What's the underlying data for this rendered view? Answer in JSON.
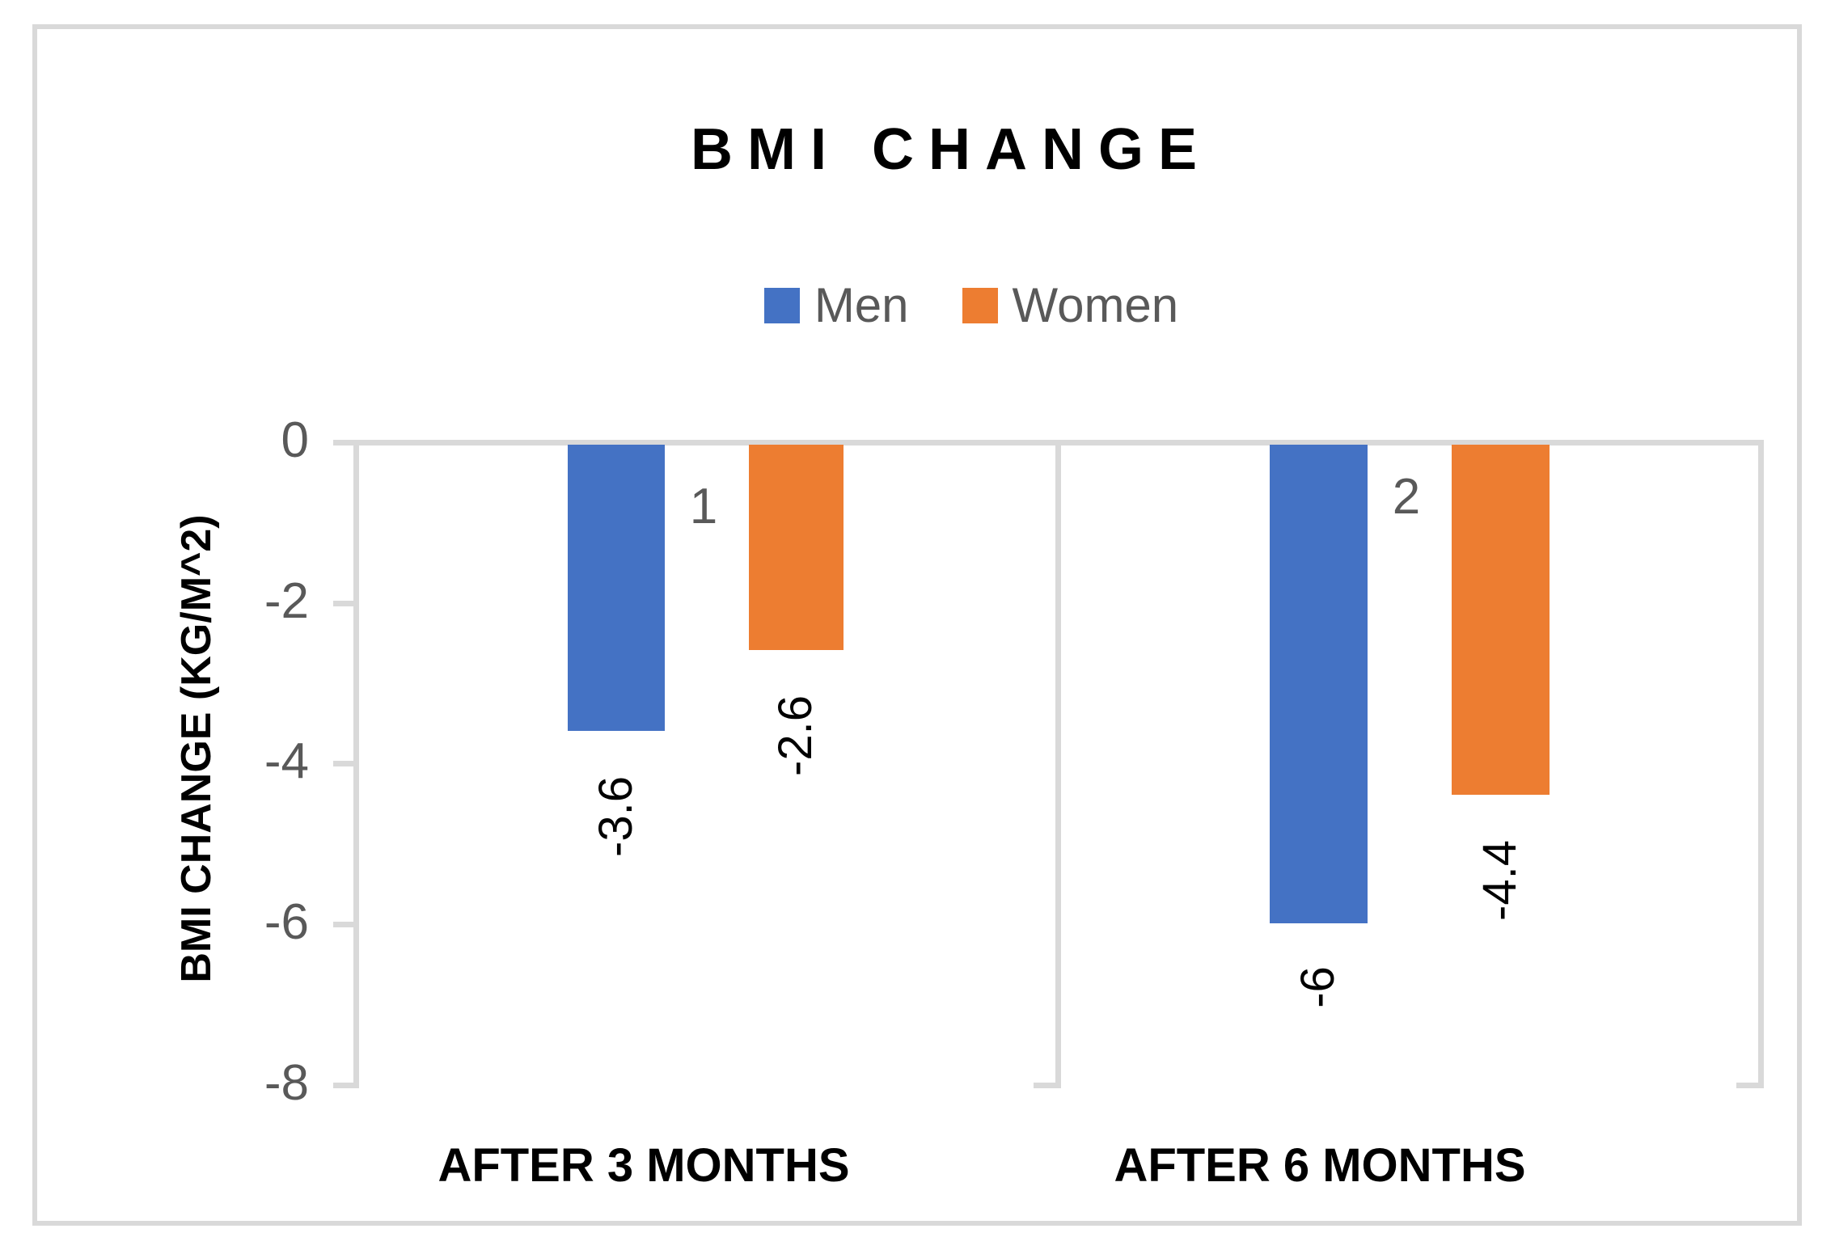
{
  "window": {
    "background": "#ffffff",
    "frame_border_color": "#d9d9d9"
  },
  "chart_data": {
    "type": "bar",
    "title": "BMI CHANGE",
    "categories": [
      "AFTER 3 MONTHS",
      "AFTER 6 MONTHS"
    ],
    "series": [
      {
        "name": "Men",
        "color": "#4472C4",
        "values": [
          -3.6,
          -6
        ]
      },
      {
        "name": "Women",
        "color": "#ED7D31",
        "values": [
          -2.6,
          -4.4
        ]
      }
    ],
    "data_labels_visible": true,
    "data_label_rotation": "rotate-up",
    "group_annotations": [
      "1",
      "2"
    ],
    "ylabel": "BMI CHANGE (KG/M^2)",
    "xlabel": "",
    "ylim": [
      -8,
      0
    ],
    "yticks": [
      "0",
      "-2",
      "-4",
      "-6",
      "-8"
    ],
    "legend_position": "top",
    "gridlines": "vertical-category-dividers-only",
    "axis_line_color": "#D9D9D9",
    "tick_text_color": "#595959",
    "annotation_text_color": "#595959",
    "title_color": "#000000",
    "data_label_color": "#000000"
  }
}
